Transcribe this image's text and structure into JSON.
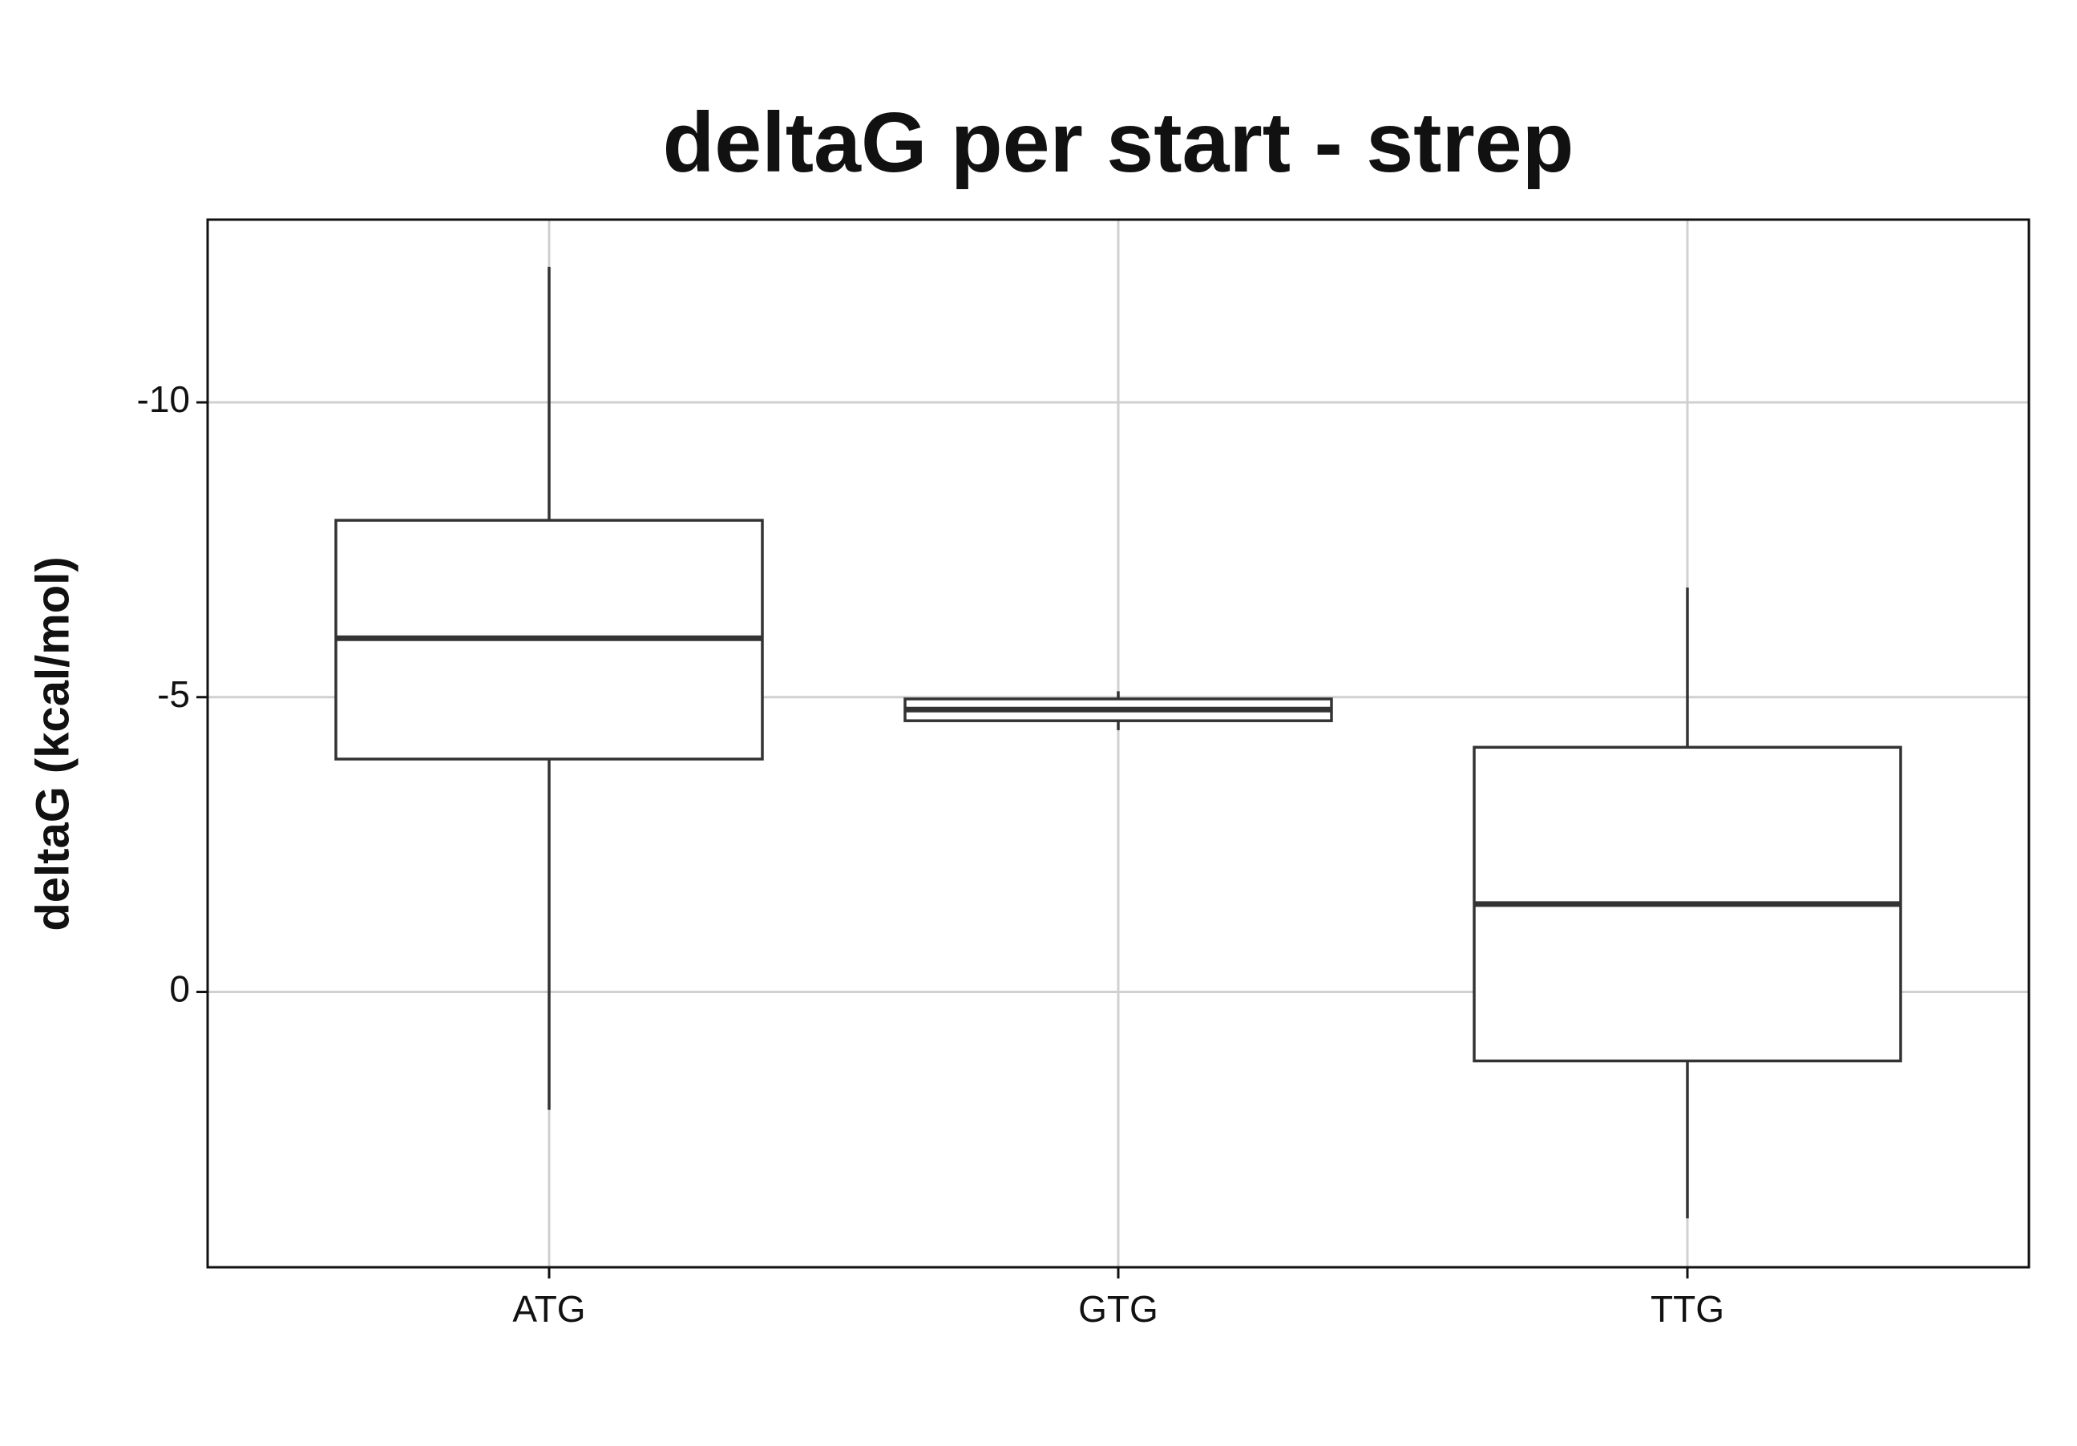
{
  "chart_data": {
    "type": "box",
    "title": "deltaG per start - strep",
    "y_label": "deltaG (kcal/mol)",
    "categories": [
      "ATG",
      "GTG",
      "TTG"
    ],
    "whisker_low": [
      2.0,
      -4.44,
      3.84
    ],
    "q1": [
      -3.95,
      -4.6,
      1.17
    ],
    "median": [
      -6.0,
      -4.79,
      -1.49
    ],
    "q3": [
      -8.0,
      -4.97,
      -4.15
    ],
    "whisker_high": [
      -12.3,
      -5.1,
      -6.86
    ],
    "ylim": [
      4.67,
      -13.1
    ],
    "yticks": [
      -10,
      -5,
      0
    ],
    "grid": true,
    "color": "#333333"
  }
}
